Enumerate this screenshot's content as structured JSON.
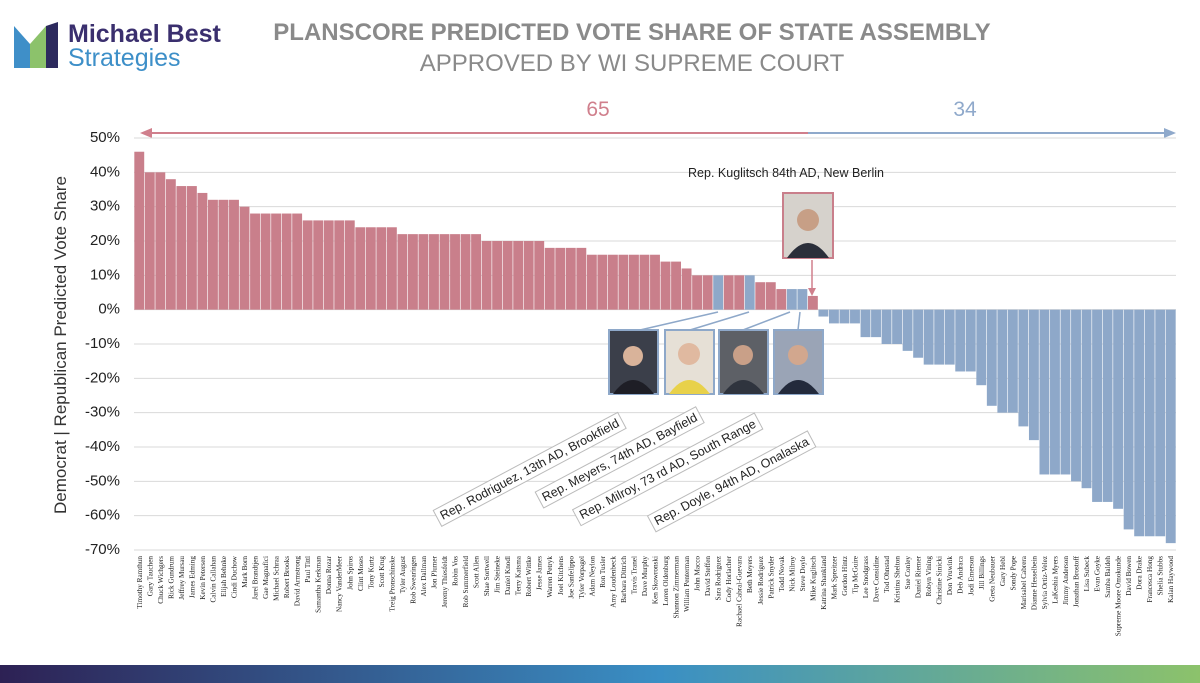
{
  "logo": {
    "line1": "Michael Best",
    "line2": "Strategies"
  },
  "chart_data": {
    "type": "bar",
    "title": "PLANSCORE PREDICTED VOTE SHARE OF STATE ASSEMBLY",
    "subtitle": "APPROVED BY WI SUPREME COURT",
    "y_label": "Democrat | Republican Predicted Vote Share",
    "seat_counts": [
      {
        "label": "65",
        "color": "#d07f8c"
      },
      {
        "label": "34",
        "color": "#8fa9cb"
      }
    ],
    "ylim": [
      -70,
      50
    ],
    "yticks": [
      {
        "value": 50,
        "label": "50%"
      },
      {
        "value": 40,
        "label": "40%"
      },
      {
        "value": 30,
        "label": "30%"
      },
      {
        "value": 20,
        "label": "20%"
      },
      {
        "value": 10,
        "label": "10%"
      },
      {
        "value": 0,
        "label": "0%"
      },
      {
        "value": -10,
        "label": "-10%"
      },
      {
        "value": -20,
        "label": "-20%"
      },
      {
        "value": -30,
        "label": "-30%"
      },
      {
        "value": -40,
        "label": "-40%"
      },
      {
        "value": -50,
        "label": "-50%"
      },
      {
        "value": -60,
        "label": "-60%"
      },
      {
        "value": -70,
        "label": "-70%"
      }
    ],
    "grid": true,
    "categories": [
      "Timothy Ramthun",
      "Gary Tauchen",
      "Chuck Wichgers",
      "Rick Gundrum",
      "Jeffrey Mursau",
      "James Edming",
      "Kevin Petersen",
      "Calvin Callahan",
      "Elijah Behnke",
      "Cindi Duchow",
      "Mark Born",
      "Jarel Brandtjen",
      "Gae Magnafici",
      "Michael Schraa",
      "Robert Brooks",
      "David Armstrong",
      "Paul Tittl",
      "Samantha Kerkman",
      "Donna Rozar",
      "Nancy VanderMeer",
      "John Spiros",
      "Clint Moses",
      "Tony Kurtz",
      "Scott Krug",
      "Treig Pronschinske",
      "Tyler August",
      "Rob Swearingen",
      "Alex Dallman",
      "Jon Plumer",
      "Jeremy Thiesfeldt",
      "Robin Vos",
      "Rob Summerfield",
      "Scott Allen",
      "Shae Sortwell",
      "Jim Steineke",
      "Daniel Knodl",
      "Terry Katsma",
      "Robert Wittke",
      "Jesse James",
      "Warren Petryk",
      "Joel Kitchens",
      "Joe Sanfelippo",
      "Tyler Vorpagel",
      "Adam Neylon",
      "Ron Tusler",
      "Amy Loudenbeck",
      "Barbara Dittrich",
      "Travis Tranel",
      "Dave Murphy",
      "Ken Skowronski",
      "Loren Oldenburg",
      "Shannon Zimmerman",
      "William Penterman",
      "John Macco",
      "David Steffen",
      "Sara Rodriguez",
      "Cody Horlacher",
      "Rachael Cabral-Guevara",
      "Beth Meyers",
      "Jessie Rodriguez",
      "Patrick Snyder",
      "Todd Novak",
      "Nick Milroy",
      "Steve Doyle",
      "Mike Kuglitsch",
      "Katrina Shankland",
      "Mark Spreitzer",
      "Gordon Hintz",
      "Tip McGuire",
      "Lee Snodgrass",
      "Dave Considine",
      "Tod Ohnstad",
      "Kristina Shelton",
      "Sue Conley",
      "Daniel Riemer",
      "Robyn Vining",
      "Christine Sinicki",
      "Don Vruwink",
      "Deb Andraca",
      "Jodi Emerson",
      "Jill Billings",
      "Greta Neubauer",
      "Gary Hebl",
      "Sondy Pope",
      "Marisabel Cabrera",
      "Dianne Hesselbein",
      "Sylvia Ortiz-Velez",
      "LaKeshia Myers",
      "Jimmy Anderson",
      "Jonathan Brostoff",
      "Lisa Subeck",
      "Evan Goyke",
      "Samba Baldeh",
      "Supreme Moore Omokunde",
      "David Bowen",
      "Dora Drake",
      "Francesca Hong",
      "Shelia Stubbs",
      "Kalan Haywood"
    ],
    "values": [
      46,
      40,
      40,
      38,
      36,
      36,
      34,
      32,
      32,
      32,
      30,
      28,
      28,
      28,
      28,
      28,
      26,
      26,
      26,
      26,
      26,
      24,
      24,
      24,
      24,
      22,
      22,
      22,
      22,
      22,
      22,
      22,
      22,
      20,
      20,
      20,
      20,
      20,
      20,
      18,
      18,
      18,
      18,
      16,
      16,
      16,
      16,
      16,
      16,
      16,
      14,
      14,
      12,
      10,
      10,
      10,
      10,
      10,
      10,
      8,
      8,
      6,
      6,
      6,
      4,
      -2,
      -4,
      -4,
      -4,
      -8,
      -8,
      -10,
      -10,
      -12,
      -14,
      -16,
      -16,
      -16,
      -18,
      -18,
      -22,
      -28,
      -30,
      -30,
      -34,
      -38,
      -48,
      -48,
      -48,
      -50,
      -52,
      -56,
      -56,
      -58,
      -64,
      -66,
      -66,
      -66,
      -68
    ],
    "colors": [
      "#c97f8b",
      "#c97f8b",
      "#c97f8b",
      "#c97f8b",
      "#c97f8b",
      "#c97f8b",
      "#c97f8b",
      "#c97f8b",
      "#c97f8b",
      "#c97f8b",
      "#c97f8b",
      "#c97f8b",
      "#c97f8b",
      "#c97f8b",
      "#c97f8b",
      "#c97f8b",
      "#c97f8b",
      "#c97f8b",
      "#c97f8b",
      "#c97f8b",
      "#c97f8b",
      "#c97f8b",
      "#c97f8b",
      "#c97f8b",
      "#c97f8b",
      "#c97f8b",
      "#c97f8b",
      "#c97f8b",
      "#c97f8b",
      "#c97f8b",
      "#c97f8b",
      "#c97f8b",
      "#c97f8b",
      "#c97f8b",
      "#c97f8b",
      "#c97f8b",
      "#c97f8b",
      "#c97f8b",
      "#c97f8b",
      "#c97f8b",
      "#c97f8b",
      "#c97f8b",
      "#c97f8b",
      "#c97f8b",
      "#c97f8b",
      "#c97f8b",
      "#c97f8b",
      "#c97f8b",
      "#c97f8b",
      "#c97f8b",
      "#c97f8b",
      "#c97f8b",
      "#c97f8b",
      "#c97f8b",
      "#c97f8b",
      "#8ea8c9",
      "#c97f8b",
      "#c97f8b",
      "#8ea8c9",
      "#c97f8b",
      "#c97f8b",
      "#c97f8b",
      "#8ea8c9",
      "#8ea8c9",
      "#c97f8b",
      "#8ea8c9",
      "#8ea8c9",
      "#8ea8c9",
      "#8ea8c9",
      "#8ea8c9",
      "#8ea8c9",
      "#8ea8c9",
      "#8ea8c9",
      "#8ea8c9",
      "#8ea8c9",
      "#8ea8c9",
      "#8ea8c9",
      "#8ea8c9",
      "#8ea8c9",
      "#8ea8c9",
      "#8ea8c9",
      "#8ea8c9",
      "#8ea8c9",
      "#8ea8c9",
      "#8ea8c9",
      "#8ea8c9",
      "#8ea8c9",
      "#8ea8c9",
      "#8ea8c9",
      "#8ea8c9",
      "#8ea8c9",
      "#8ea8c9",
      "#8ea8c9",
      "#8ea8c9",
      "#8ea8c9",
      "#8ea8c9",
      "#8ea8c9",
      "#8ea8c9",
      "#8ea8c9"
    ],
    "annotations": [
      "Rep. Kuglitsch 84th AD, New Berlin",
      "Rep. Rodriguez, 13th AD, Brookfield",
      "Rep. Meyers, 74th AD, Bayfield",
      "Rep. Milroy, 73 rd AD, South Range",
      "Rep. Doyle, 94th AD, Onalaska"
    ]
  }
}
